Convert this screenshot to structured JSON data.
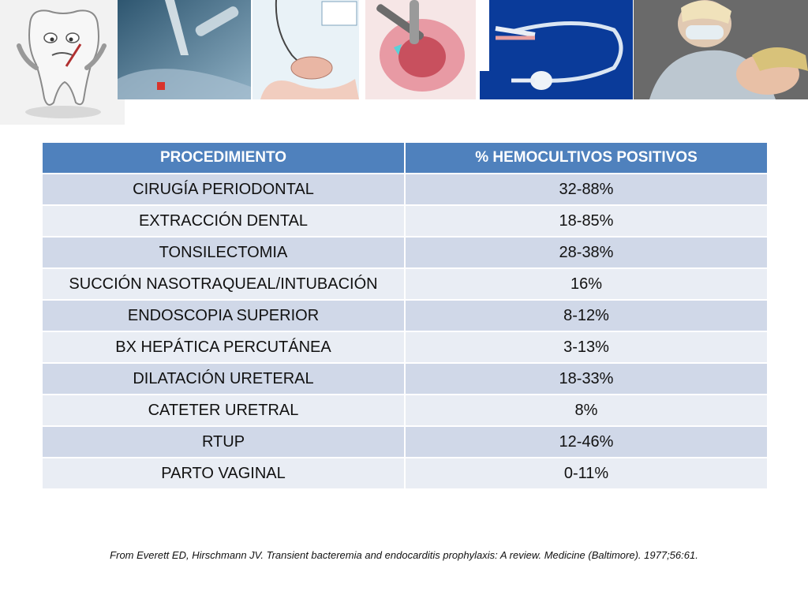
{
  "images": [
    {
      "name": "tooth-cartoon",
      "icon": "tooth-icon"
    },
    {
      "name": "intubation-photo",
      "icon": "tube-icon"
    },
    {
      "name": "endoscopy-diagram",
      "icon": "endoscope-icon"
    },
    {
      "name": "tonsillectomy-illustration",
      "icon": "throat-icon"
    },
    {
      "name": "foley-catheter-photo",
      "icon": "catheter-icon"
    },
    {
      "name": "dentist-photo",
      "icon": "dentist-icon"
    }
  ],
  "table": {
    "headers": [
      "PROCEDIMIENTO",
      "% HEMOCULTIVOS POSITIVOS"
    ],
    "rows": [
      [
        "CIRUGÍA PERIODONTAL",
        "32-88%"
      ],
      [
        "EXTRACCIÓN DENTAL",
        "18-85%"
      ],
      [
        "TONSILECTOMIA",
        "28-38%"
      ],
      [
        "SUCCIÓN NASOTRAQUEAL/INTUBACIÓN",
        "16%"
      ],
      [
        "ENDOSCOPIA SUPERIOR",
        "8-12%"
      ],
      [
        "BX HEPÁTICA PERCUTÁNEA",
        "3-13%"
      ],
      [
        "DILATACIÓN URETERAL",
        "18-33%"
      ],
      [
        "CATETER URETRAL",
        "8%"
      ],
      [
        "RTUP",
        "12-46%"
      ],
      [
        "PARTO VAGINAL",
        "0-11%"
      ]
    ]
  },
  "citation": "From Everett ED, Hirschmann JV. Transient bacteremia and endocarditis prophylaxis: A review. Medicine (Baltimore). 1977;56:61.",
  "colors": {
    "header_bg": "#4f81bd",
    "row_odd": "#d0d8e8",
    "row_even": "#e9edf4"
  }
}
